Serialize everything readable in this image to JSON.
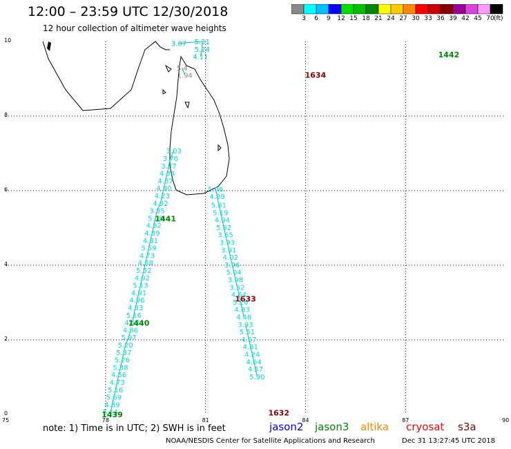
{
  "title": "12:00 – 23:59 UTC 12/30/2018",
  "subtitle": "12 hour collection of altimeter wave heights",
  "colorbar": {
    "unit": "(ft)",
    "colors": [
      "#888888",
      "#00ffff",
      "#00c0ff",
      "#0000ff",
      "#00e000",
      "#00c000",
      "#008800",
      "#ffff00",
      "#ffcc00",
      "#ff8800",
      "#ff0000",
      "#cc0000",
      "#880000",
      "#990099",
      "#dd44dd",
      "#ff99ff",
      "#000000"
    ],
    "labels": [
      "3",
      "6",
      "9",
      "12",
      "15",
      "18",
      "21",
      "24",
      "27",
      "30",
      "33",
      "36",
      "39",
      "42",
      "45",
      "70"
    ]
  },
  "axes": {
    "x_ticks": [
      "75",
      "78",
      "81",
      "84",
      "87",
      "90"
    ],
    "y_ticks": [
      "10",
      "8",
      "6",
      "4",
      "2",
      "0"
    ],
    "lon_range": [
      75,
      90
    ],
    "lat_range": [
      0,
      10
    ]
  },
  "tracks": [
    {
      "id": "1442",
      "label": "1442",
      "label_color": "#008800",
      "label_pos": [
        88.3,
        9.65
      ],
      "points": [
        {
          "lon": 80.2,
          "lat": 9.95,
          "value": "3.07",
          "color": "#00cccc"
        },
        {
          "lon": 80.9,
          "lat": 10.0,
          "value": "5.31",
          "color": "#00cccc"
        },
        {
          "lon": 80.9,
          "lat": 9.8,
          "value": "5.24",
          "color": "#00cccc"
        },
        {
          "lon": 80.85,
          "lat": 9.6,
          "value": "4.11",
          "color": "#00cccc"
        }
      ]
    },
    {
      "id": "1634",
      "label": "1634",
      "label_color": "#880000",
      "label_pos": [
        84.3,
        9.1
      ],
      "points": [
        {
          "lon": 80.3,
          "lat": 9.3,
          "value": "5.4",
          "color": "#888888"
        },
        {
          "lon": 80.38,
          "lat": 9.1,
          "value": "1.94",
          "color": "#888888"
        }
      ]
    },
    {
      "id": "1441",
      "label": "1441",
      "label_color": "#008800",
      "label_pos": [
        79.8,
        5.25
      ],
      "points": [
        {
          "lon": 80.05,
          "lat": 7.07,
          "value": "3.03"
        },
        {
          "lon": 79.95,
          "lat": 6.87,
          "value": "3.76"
        },
        {
          "lon": 79.9,
          "lat": 6.67,
          "value": "3.37"
        },
        {
          "lon": 79.85,
          "lat": 6.47,
          "value": "4.34"
        },
        {
          "lon": 79.8,
          "lat": 6.27,
          "value": "4.37"
        },
        {
          "lon": 79.75,
          "lat": 6.07,
          "value": "4.30"
        },
        {
          "lon": 79.7,
          "lat": 5.87,
          "value": "4.23"
        },
        {
          "lon": 79.65,
          "lat": 5.67,
          "value": "4.92"
        },
        {
          "lon": 79.55,
          "lat": 5.47,
          "value": "3.85"
        },
        {
          "lon": 79.5,
          "lat": 5.27,
          "value": "5.08"
        },
        {
          "lon": 79.45,
          "lat": 5.07,
          "value": "4.82"
        },
        {
          "lon": 79.4,
          "lat": 4.87,
          "value": "4.89"
        },
        {
          "lon": 79.35,
          "lat": 4.67,
          "value": "4.81"
        },
        {
          "lon": 79.3,
          "lat": 4.47,
          "value": "5.59"
        },
        {
          "lon": 79.25,
          "lat": 4.27,
          "value": "4.73"
        },
        {
          "lon": 79.2,
          "lat": 4.07,
          "value": "4.88"
        },
        {
          "lon": 79.15,
          "lat": 3.87,
          "value": "5.52"
        },
        {
          "lon": 79.1,
          "lat": 3.67,
          "value": "4.92"
        },
        {
          "lon": 79.05,
          "lat": 3.47,
          "value": "5.13"
        },
        {
          "lon": 79.0,
          "lat": 3.27,
          "value": "4.91"
        },
        {
          "lon": 78.95,
          "lat": 3.07,
          "value": "4.96"
        },
        {
          "lon": 78.9,
          "lat": 2.87,
          "value": "4.83"
        },
        {
          "lon": 78.85,
          "lat": 2.67,
          "value": "5.16"
        },
        {
          "lon": 78.8,
          "lat": 2.47,
          "value": "4.12"
        }
      ]
    },
    {
      "id": "1440",
      "label": "1440",
      "label_color": "#008800",
      "label_pos": [
        79.0,
        2.45
      ],
      "points": [
        {
          "lon": 78.75,
          "lat": 2.27,
          "value": "4.86"
        },
        {
          "lon": 78.7,
          "lat": 2.07,
          "value": "5.97"
        },
        {
          "lon": 78.6,
          "lat": 1.87,
          "value": "5.20"
        },
        {
          "lon": 78.55,
          "lat": 1.67,
          "value": "5.37"
        },
        {
          "lon": 78.5,
          "lat": 1.47,
          "value": "5.26"
        },
        {
          "lon": 78.45,
          "lat": 1.27,
          "value": "5.38"
        },
        {
          "lon": 78.4,
          "lat": 1.07,
          "value": "4.56"
        },
        {
          "lon": 78.35,
          "lat": 0.87,
          "value": "4.73"
        },
        {
          "lon": 78.3,
          "lat": 0.67,
          "value": "5.16"
        },
        {
          "lon": 78.25,
          "lat": 0.47,
          "value": "5.69"
        },
        {
          "lon": 78.2,
          "lat": 0.27,
          "value": "4.89"
        },
        {
          "lon": 78.15,
          "lat": 0.07,
          "value": "5.14"
        }
      ]
    },
    {
      "id": "1439",
      "label": "1439",
      "label_color": "#008800",
      "label_pos": [
        78.2,
        0.0
      ],
      "points": []
    },
    {
      "id": "1633",
      "label": "1633",
      "label_color": "#880000",
      "label_pos": [
        82.2,
        3.1
      ],
      "points": [
        {
          "lon": 81.3,
          "lat": 6.05,
          "value": "5.06"
        },
        {
          "lon": 81.35,
          "lat": 5.85,
          "value": "4.89"
        },
        {
          "lon": 81.4,
          "lat": 5.62,
          "value": "5.81"
        },
        {
          "lon": 81.45,
          "lat": 5.42,
          "value": "5.19"
        },
        {
          "lon": 81.5,
          "lat": 5.22,
          "value": "4.94"
        },
        {
          "lon": 81.55,
          "lat": 5.02,
          "value": "5.62"
        },
        {
          "lon": 81.6,
          "lat": 4.82,
          "value": "3.65"
        },
        {
          "lon": 81.65,
          "lat": 4.62,
          "value": "3.93"
        },
        {
          "lon": 81.7,
          "lat": 4.42,
          "value": "3.91"
        },
        {
          "lon": 81.75,
          "lat": 4.22,
          "value": "4.02"
        },
        {
          "lon": 81.8,
          "lat": 4.02,
          "value": "3.96"
        },
        {
          "lon": 81.85,
          "lat": 3.82,
          "value": "5.04"
        },
        {
          "lon": 81.9,
          "lat": 3.62,
          "value": "3.98"
        },
        {
          "lon": 81.95,
          "lat": 3.42,
          "value": "3.52"
        },
        {
          "lon": 82.0,
          "lat": 3.22,
          "value": "4.64"
        },
        {
          "lon": 82.05,
          "lat": 3.02,
          "value": "5.26"
        },
        {
          "lon": 82.1,
          "lat": 2.82,
          "value": "4.83"
        },
        {
          "lon": 82.15,
          "lat": 2.62,
          "value": "4.48"
        }
      ]
    },
    {
      "id": "1632",
      "label": "1632",
      "label_color": "#880000",
      "label_pos": [
        83.2,
        0.05
      ],
      "points": [
        {
          "lon": 82.2,
          "lat": 2.42,
          "value": "3.93"
        },
        {
          "lon": 82.25,
          "lat": 2.22,
          "value": "5.51"
        },
        {
          "lon": 82.3,
          "lat": 2.02,
          "value": "4.67"
        },
        {
          "lon": 82.35,
          "lat": 1.82,
          "value": "4.81"
        },
        {
          "lon": 82.4,
          "lat": 1.62,
          "value": "4.24"
        },
        {
          "lon": 82.45,
          "lat": 1.42,
          "value": "4.64"
        },
        {
          "lon": 82.5,
          "lat": 1.22,
          "value": "4.57"
        },
        {
          "lon": 82.55,
          "lat": 1.02,
          "value": "5.90"
        }
      ]
    }
  ],
  "note": "note:  1) Time is in UTC;  2) SWH is in feet",
  "legend": [
    {
      "label": "jason2",
      "color": "#0000ff"
    },
    {
      "label": "jason3",
      "color": "#008800"
    },
    {
      "label": "altika",
      "color": "#ff8800"
    },
    {
      "label": "cryosat",
      "color": "#ff0000"
    },
    {
      "label": "s3a",
      "color": "#880000"
    }
  ],
  "footer_left": "NOAA/NESDIS Center for Satellite Applications and Research",
  "footer_right": "Dec 31 13:27:45 UTC 2018"
}
